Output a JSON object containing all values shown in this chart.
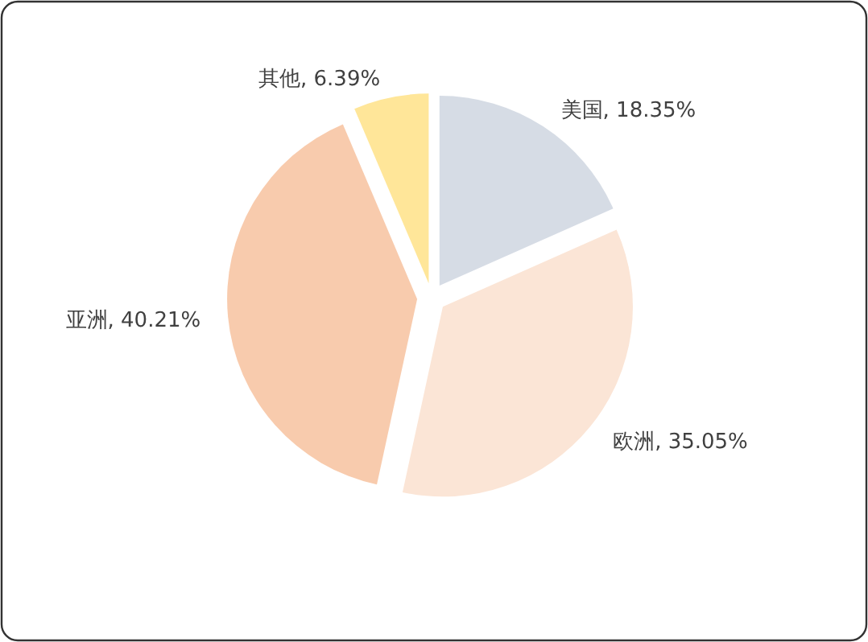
{
  "chart_data": {
    "type": "pie",
    "categories": [
      "美国",
      "欧洲",
      "亚洲",
      "其他"
    ],
    "values": [
      18.35,
      35.05,
      40.21,
      6.39
    ],
    "colors": [
      "#d6dce5",
      "#fbe5d6",
      "#f8cbad",
      "#ffe699"
    ],
    "value_labels": [
      ", 18.35%",
      ", 35.05%",
      ", 40.21%",
      ", 6.39%"
    ]
  }
}
